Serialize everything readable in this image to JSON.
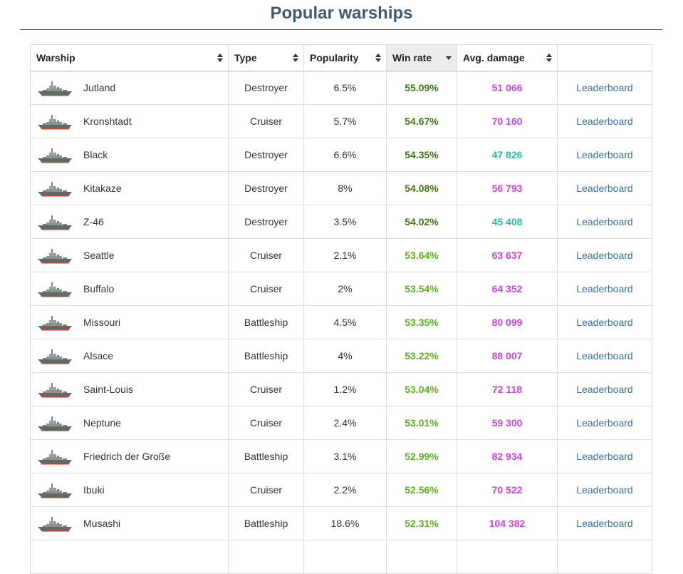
{
  "title": "Popular warships",
  "columns": {
    "warship": "Warship",
    "type": "Type",
    "popularity": "Popularity",
    "win_rate": "Win rate",
    "avg_damage": "Avg. damage"
  },
  "colors": {
    "win_dark": "#3e7a0f",
    "win_light": "#5bb31a",
    "dmg_purple": "#cc44dd",
    "dmg_teal": "#22c0a8",
    "link": "#3a6f9e"
  },
  "rows": [
    {
      "name": "Jutland",
      "type": "Destroyer",
      "popularity": "6.5%",
      "win_rate": "55.09%",
      "avg_damage": "51 066",
      "link": "Leaderboard",
      "win_color": "win_dark",
      "dmg_color": "dmg_purple",
      "icon": "destroyer-ship-icon"
    },
    {
      "name": "Kronshtadt",
      "type": "Cruiser",
      "popularity": "5.7%",
      "win_rate": "54.67%",
      "avg_damage": "70 160",
      "link": "Leaderboard",
      "win_color": "win_dark",
      "dmg_color": "dmg_purple",
      "icon": "cruiser-ship-icon"
    },
    {
      "name": "Black",
      "type": "Destroyer",
      "popularity": "6.6%",
      "win_rate": "54.35%",
      "avg_damage": "47 826",
      "link": "Leaderboard",
      "win_color": "win_dark",
      "dmg_color": "dmg_teal",
      "icon": "destroyer-ship-icon"
    },
    {
      "name": "Kitakaze",
      "type": "Destroyer",
      "popularity": "8%",
      "win_rate": "54.08%",
      "avg_damage": "56 793",
      "link": "Leaderboard",
      "win_color": "win_dark",
      "dmg_color": "dmg_purple",
      "icon": "destroyer-ship-icon"
    },
    {
      "name": "Z-46",
      "type": "Destroyer",
      "popularity": "3.5%",
      "win_rate": "54.02%",
      "avg_damage": "45 408",
      "link": "Leaderboard",
      "win_color": "win_dark",
      "dmg_color": "dmg_teal",
      "icon": "destroyer-ship-icon"
    },
    {
      "name": "Seattle",
      "type": "Cruiser",
      "popularity": "2.1%",
      "win_rate": "53.64%",
      "avg_damage": "63 637",
      "link": "Leaderboard",
      "win_color": "win_light",
      "dmg_color": "dmg_purple",
      "icon": "cruiser-ship-icon"
    },
    {
      "name": "Buffalo",
      "type": "Cruiser",
      "popularity": "2%",
      "win_rate": "53.54%",
      "avg_damage": "64 352",
      "link": "Leaderboard",
      "win_color": "win_light",
      "dmg_color": "dmg_purple",
      "icon": "cruiser-ship-icon"
    },
    {
      "name": "Missouri",
      "type": "Battleship",
      "popularity": "4.5%",
      "win_rate": "53.35%",
      "avg_damage": "80 099",
      "link": "Leaderboard",
      "win_color": "win_light",
      "dmg_color": "dmg_purple",
      "icon": "battleship-ship-icon"
    },
    {
      "name": "Alsace",
      "type": "Battleship",
      "popularity": "4%",
      "win_rate": "53.22%",
      "avg_damage": "88 007",
      "link": "Leaderboard",
      "win_color": "win_light",
      "dmg_color": "dmg_purple",
      "icon": "battleship-ship-icon"
    },
    {
      "name": "Saint-Louis",
      "type": "Cruiser",
      "popularity": "1.2%",
      "win_rate": "53.04%",
      "avg_damage": "72 118",
      "link": "Leaderboard",
      "win_color": "win_light",
      "dmg_color": "dmg_purple",
      "icon": "cruiser-ship-icon"
    },
    {
      "name": "Neptune",
      "type": "Cruiser",
      "popularity": "2.4%",
      "win_rate": "53.01%",
      "avg_damage": "59 300",
      "link": "Leaderboard",
      "win_color": "win_light",
      "dmg_color": "dmg_purple",
      "icon": "cruiser-ship-icon"
    },
    {
      "name": "Friedrich der Große",
      "type": "Battleship",
      "popularity": "3.1%",
      "win_rate": "52.99%",
      "avg_damage": "82 934",
      "link": "Leaderboard",
      "win_color": "win_light",
      "dmg_color": "dmg_purple",
      "icon": "battleship-ship-icon"
    },
    {
      "name": "Ibuki",
      "type": "Cruiser",
      "popularity": "2.2%",
      "win_rate": "52.56%",
      "avg_damage": "70 522",
      "link": "Leaderboard",
      "win_color": "win_light",
      "dmg_color": "dmg_purple",
      "icon": "cruiser-ship-icon"
    },
    {
      "name": "Musashi",
      "type": "Battleship",
      "popularity": "18.6%",
      "win_rate": "52.31%",
      "avg_damage": "104 382",
      "link": "Leaderboard",
      "win_color": "win_light",
      "dmg_color": "dmg_purple",
      "icon": "battleship-ship-icon"
    },
    {
      "name": "",
      "type": "",
      "popularity": "",
      "win_rate": "",
      "avg_damage": "",
      "link": "",
      "win_color": "win_light",
      "dmg_color": "dmg_purple",
      "icon": ""
    }
  ]
}
